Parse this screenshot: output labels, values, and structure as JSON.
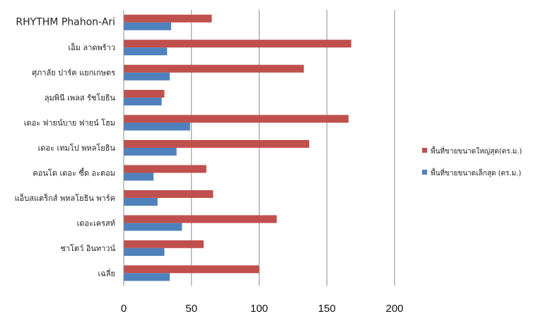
{
  "chart_data": {
    "type": "bar",
    "orientation": "horizontal",
    "categories": [
      "RHYTHM  Phahon-Ari",
      "เอ็ม ลาดพร้าว",
      "ศุภาลัย ปาร์ค แยกเกษตร",
      "ลุมพินี เพลส รัชโยธิน",
      "เดอะ ฟายน์บาย ฟายน์ โฮม",
      "เดอะ เทมโป พหลโยธิน",
      "คอนโด เดอะ ซี้ด อะตอม",
      "แอ็บสแตร็กส์ พหลโยธิน พาร์ค",
      "เดอะเครสท์",
      "ชาโตว์ อินทาวน์",
      "เฉลี่ย"
    ],
    "series": [
      {
        "name": "พื้นที่ขายขนาดใหญ่สุด(ตร.ม.)",
        "color": "#c0504d",
        "values": [
          65,
          168,
          133,
          30,
          166,
          137,
          61,
          66,
          113,
          59,
          100
        ]
      },
      {
        "name": "พื้นที่ขายขนาดเล็กสุด (ตร.ม.)",
        "color": "#4f81bd",
        "values": [
          35,
          32,
          34,
          28,
          49,
          39,
          22,
          25,
          43,
          30,
          34
        ]
      }
    ],
    "xlim": [
      0,
      200
    ],
    "xticks": [
      "0",
      "50",
      "100",
      "150",
      "200"
    ],
    "grid": true,
    "legend": "right"
  }
}
